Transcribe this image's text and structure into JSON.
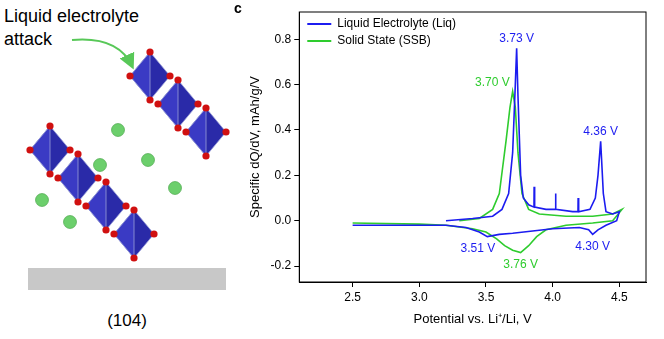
{
  "chart_data": {
    "type": "line",
    "panel": "c",
    "x_label": "Potential vs. Li⁺/Li, V",
    "y_label": "Specific dQ/dV, mAh/g/V",
    "xlim": [
      2.1,
      4.7
    ],
    "xticks": [
      2.5,
      {
        "value": 3.0,
        "label": "3.0"
      },
      3.5,
      {
        "value": 4.0,
        "label": "4.0"
      },
      4.5
    ],
    "ylim": [
      -0.27,
      0.92
    ],
    "yticks": [
      -0.2,
      {
        "value": 0,
        "label": "0.0"
      },
      0.2,
      0.4,
      0.6,
      0.8
    ],
    "grid": false,
    "legend": "upper left",
    "series": [
      {
        "name": "Liquid Electrolyte (Liq)",
        "color": "#1c1cf0",
        "x": [
          3.2,
          3.4,
          3.55,
          3.62,
          3.67,
          3.7,
          3.72,
          3.73,
          3.74,
          3.76,
          3.78,
          3.82,
          3.86,
          3.861,
          3.865,
          3.95,
          4.02,
          4.021,
          4.025,
          4.15,
          4.19,
          4.191,
          4.195,
          4.28,
          4.32,
          4.34,
          4.36,
          4.38,
          4.4,
          4.45,
          4.5,
          4.48,
          4.4,
          4.34,
          4.3,
          4.27,
          4.2,
          4.0,
          3.85,
          3.7,
          3.6,
          3.51,
          3.45,
          3.35,
          3.2,
          3.0,
          2.5
        ],
        "values": [
          0.0,
          0.01,
          0.02,
          0.05,
          0.12,
          0.3,
          0.6,
          0.76,
          0.55,
          0.2,
          0.1,
          0.07,
          0.06,
          0.15,
          0.06,
          0.05,
          0.05,
          0.12,
          0.05,
          0.04,
          0.04,
          0.1,
          0.04,
          0.05,
          0.1,
          0.2,
          0.35,
          0.12,
          0.04,
          0.03,
          0.04,
          0.0,
          -0.02,
          -0.04,
          -0.06,
          -0.04,
          -0.03,
          -0.035,
          -0.045,
          -0.055,
          -0.06,
          -0.07,
          -0.05,
          -0.03,
          -0.02,
          -0.02,
          -0.02
        ],
        "annotations": [
          {
            "text": "3.73 V",
            "x": 3.73,
            "y": 0.76
          },
          {
            "text": "4.36 V",
            "x": 4.36,
            "y": 0.35
          },
          {
            "text": "3.51 V",
            "x": 3.51,
            "y": -0.07
          },
          {
            "text": "4.30 V",
            "x": 4.3,
            "y": -0.06
          }
        ]
      },
      {
        "name": "Solid State (SSB)",
        "color": "#2ecc2e",
        "x": [
          3.3,
          3.45,
          3.55,
          3.6,
          3.65,
          3.68,
          3.7,
          3.72,
          3.74,
          3.77,
          3.82,
          3.9,
          4.1,
          4.3,
          4.45,
          4.52,
          4.45,
          4.3,
          4.1,
          3.95,
          3.88,
          3.82,
          3.76,
          3.7,
          3.64,
          3.58,
          3.5,
          3.4,
          3.2,
          3.0,
          2.5
        ],
        "values": [
          0.0,
          0.01,
          0.05,
          0.12,
          0.35,
          0.5,
          0.57,
          0.5,
          0.3,
          0.12,
          0.05,
          0.03,
          0.02,
          0.02,
          0.03,
          0.05,
          0.0,
          -0.01,
          -0.02,
          -0.04,
          -0.07,
          -0.11,
          -0.14,
          -0.13,
          -0.11,
          -0.08,
          -0.05,
          -0.035,
          -0.02,
          -0.015,
          -0.01
        ],
        "annotations": [
          {
            "text": "3.70 V",
            "x": 3.7,
            "y": 0.57
          },
          {
            "text": "3.76 V",
            "x": 3.76,
            "y": -0.14
          }
        ]
      }
    ]
  },
  "diagram": {
    "caption": "Liquid electrolyte attack",
    "facet": "(104)"
  }
}
